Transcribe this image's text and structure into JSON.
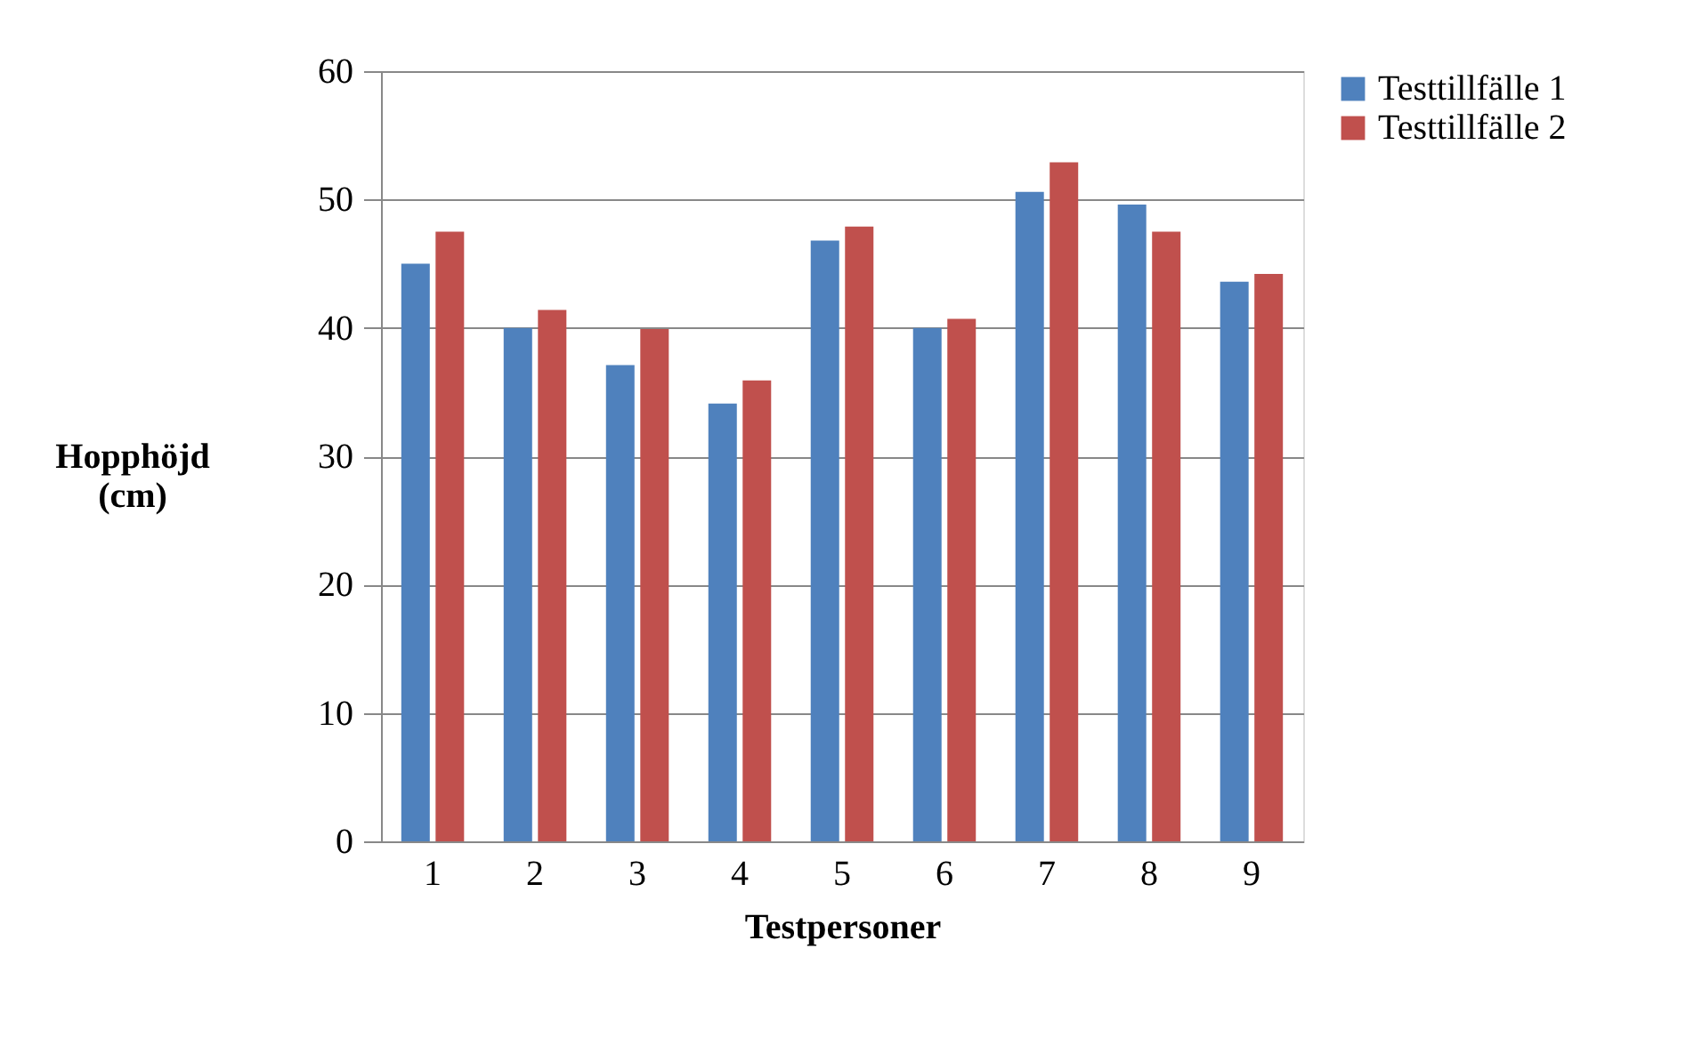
{
  "chart_data": {
    "type": "bar",
    "xlabel": "Testpersoner",
    "ylabel": "Hopphöjd\n(cm)",
    "categories": [
      "1",
      "2",
      "3",
      "4",
      "5",
      "6",
      "7",
      "8",
      "9"
    ],
    "series": [
      {
        "name": "Testtillfälle 1",
        "color": "#4f81bd",
        "values": [
          45.0,
          40.0,
          37.1,
          34.1,
          46.8,
          40.0,
          50.6,
          49.6,
          43.6
        ]
      },
      {
        "name": "Testtillfälle 2",
        "color": "#c0504d",
        "values": [
          47.5,
          41.4,
          39.9,
          35.9,
          47.9,
          40.7,
          52.9,
          47.5,
          44.2
        ]
      }
    ],
    "ylim": [
      0,
      60
    ],
    "yticks": [
      0,
      10,
      20,
      30,
      40,
      50,
      60
    ],
    "grid": "y",
    "legend": "right"
  }
}
